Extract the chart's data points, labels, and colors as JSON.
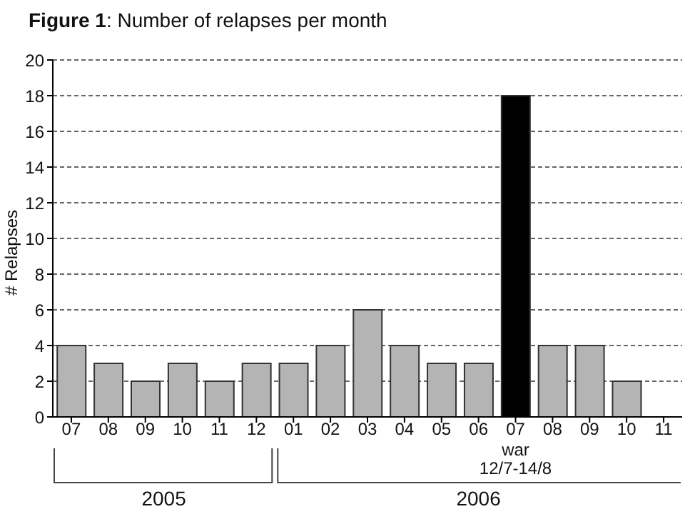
{
  "chart_data": {
    "type": "bar",
    "title": "Figure 1: Number of relapses per month",
    "ylabel": "# Relapses",
    "categories": [
      "07",
      "08",
      "09",
      "10",
      "11",
      "12",
      "01",
      "02",
      "03",
      "04",
      "05",
      "06",
      "07",
      "08",
      "09",
      "10",
      "11"
    ],
    "values": [
      4,
      3,
      2,
      3,
      2,
      3,
      3,
      4,
      6,
      4,
      3,
      3,
      18,
      4,
      4,
      2,
      null
    ],
    "colors": [
      "#b4b4b4",
      "#b4b4b4",
      "#b4b4b4",
      "#b4b4b4",
      "#b4b4b4",
      "#b4b4b4",
      "#b4b4b4",
      "#b4b4b4",
      "#b4b4b4",
      "#b4b4b4",
      "#b4b4b4",
      "#b4b4b4",
      "#000000",
      "#b4b4b4",
      "#b4b4b4",
      "#b4b4b4",
      "#b4b4b4"
    ],
    "ylim": [
      0,
      20
    ],
    "yticks": [
      0,
      2,
      4,
      6,
      8,
      10,
      12,
      14,
      16,
      18,
      20
    ],
    "grid": "y",
    "annotations": [
      "war\n12/7-14/8",
      "2005",
      "2006"
    ]
  }
}
